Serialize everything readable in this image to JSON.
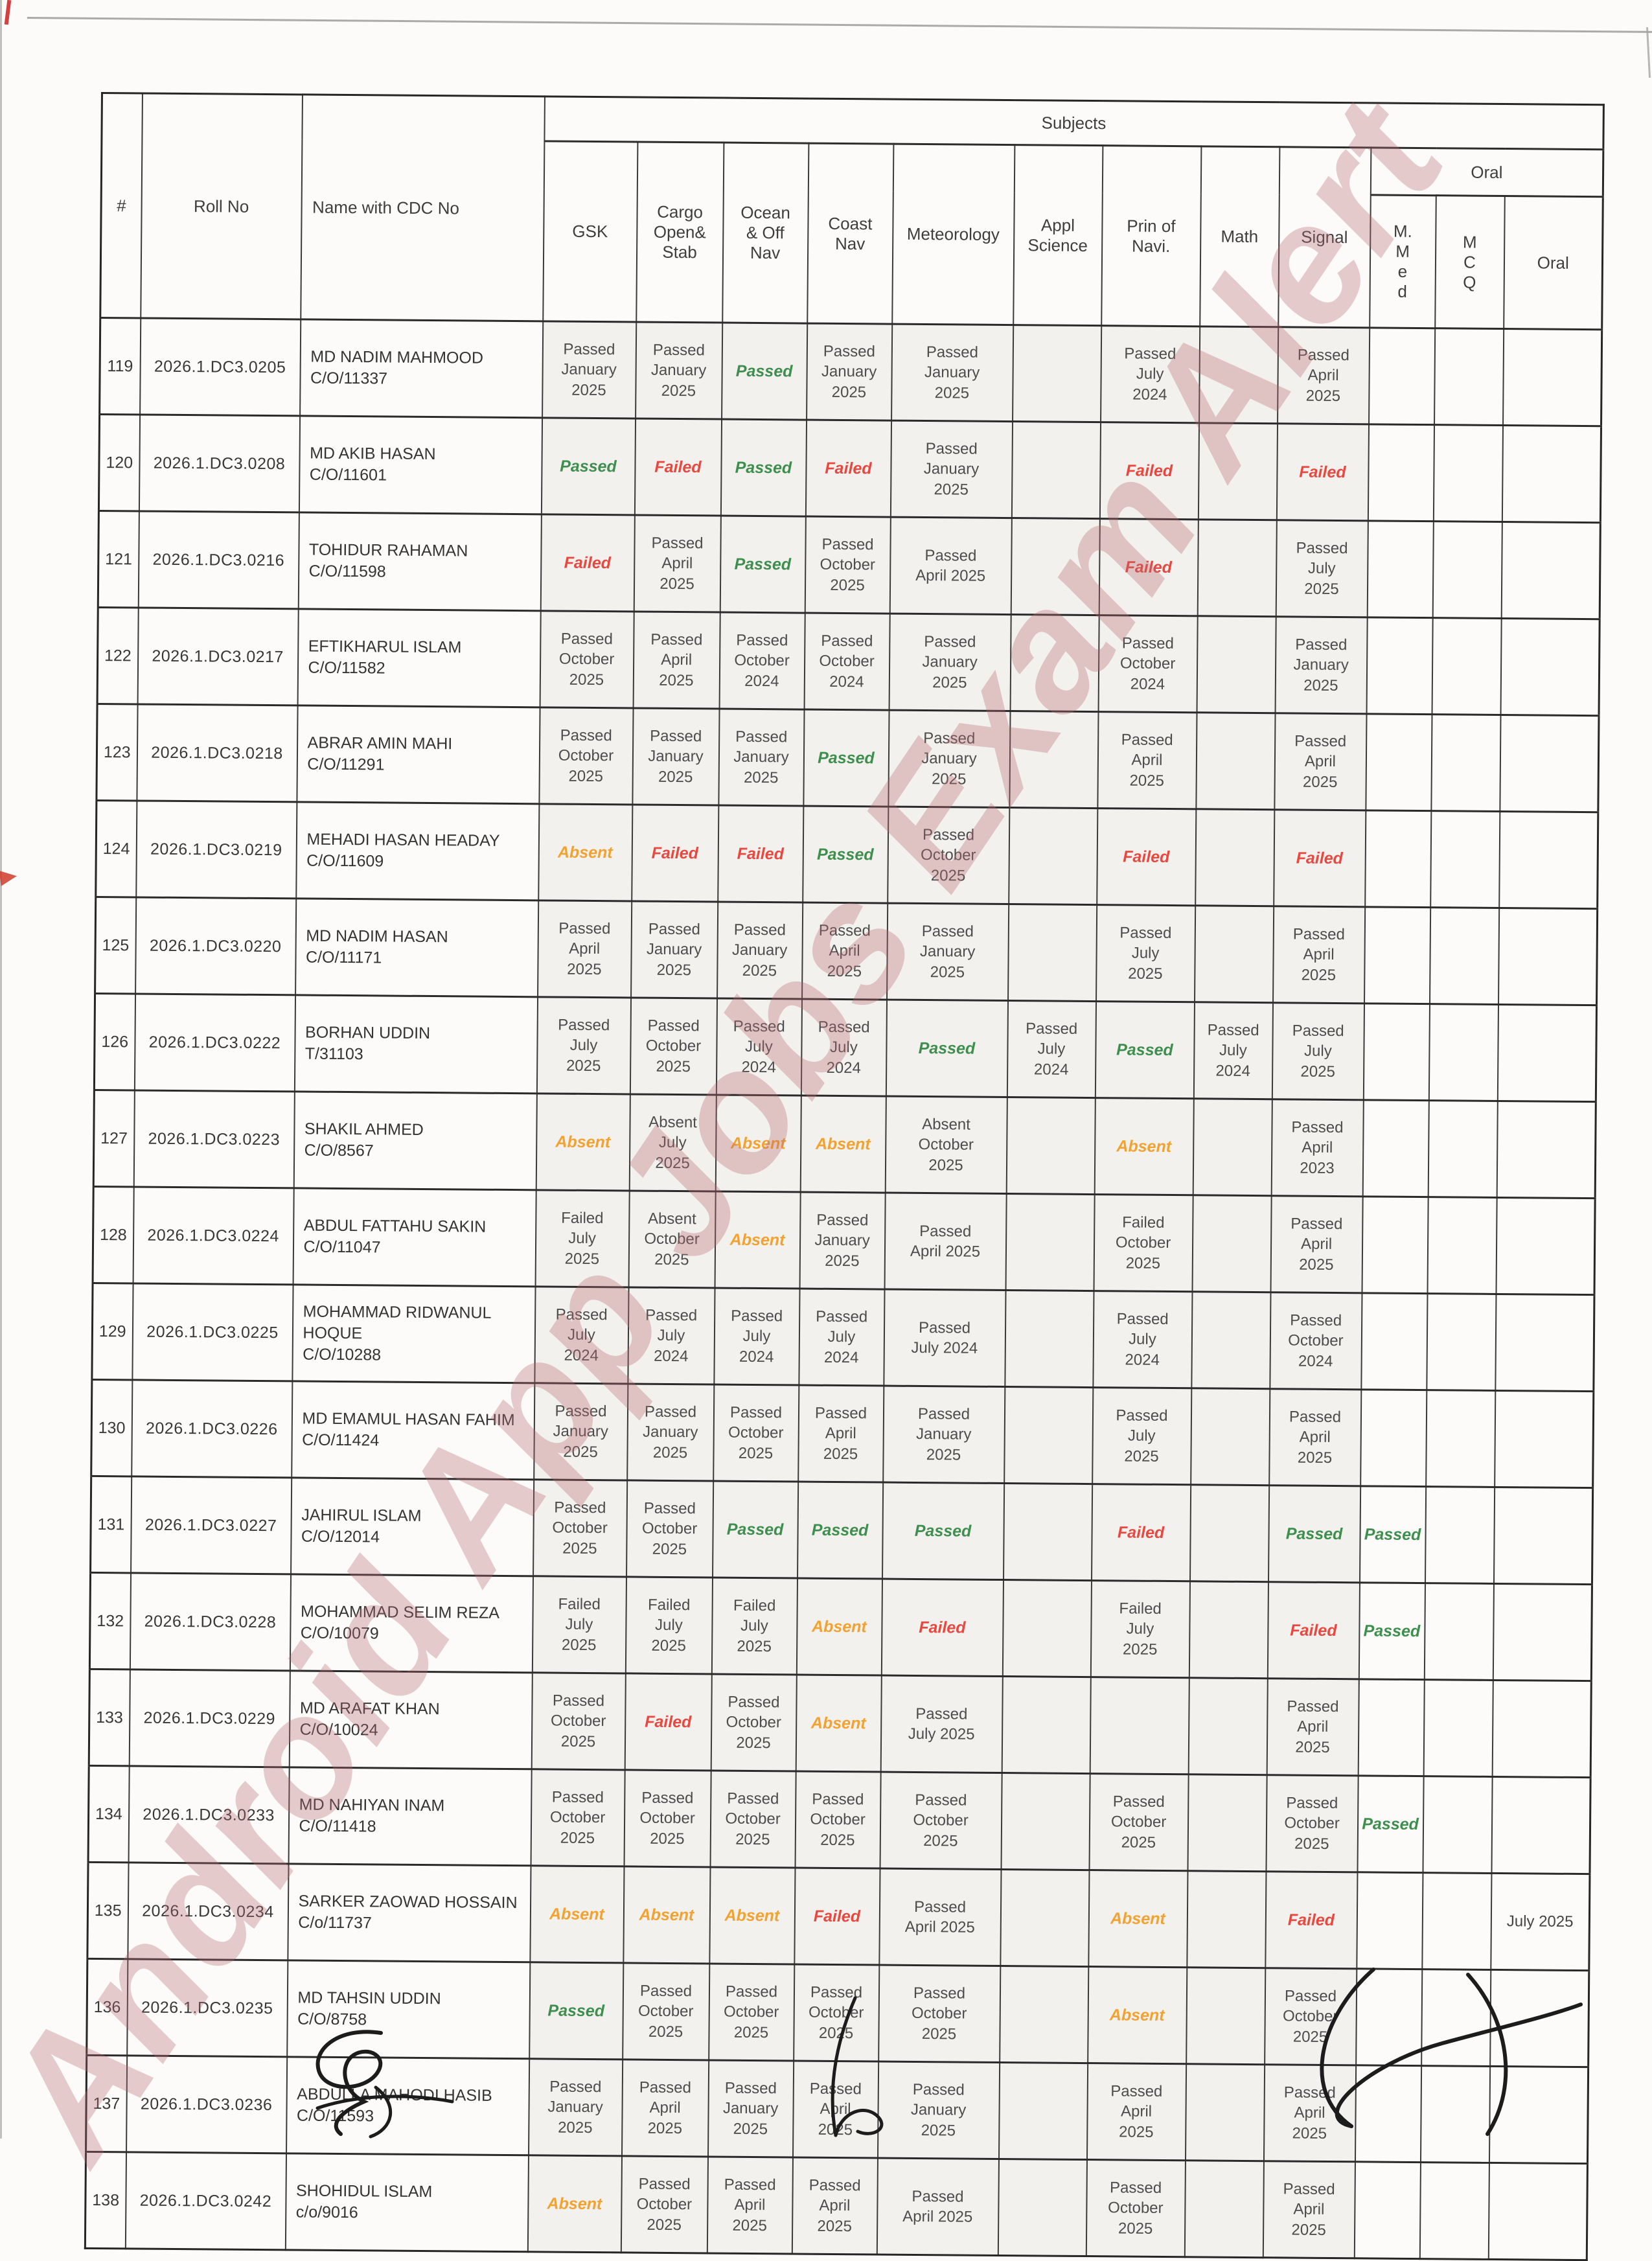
{
  "watermark": {
    "text": "Android App Jobs Exam Alert"
  },
  "colors": {
    "passed": "#3e8e4e",
    "failed": "#e8483f",
    "absent": "#f2a230",
    "dated": "#4d4d4d"
  },
  "table": {
    "headers": {
      "num": "#",
      "roll": "Roll No",
      "name": "Name with CDC No",
      "subjects_group": "Subjects",
      "subject_cols": [
        "GSK",
        "Cargo\nOpen&\nStab",
        "Ocean\n& Off\nNav",
        "Coast\nNav",
        "Meteorology",
        "Appl\nScience",
        "Prin of\nNavi.",
        "Math",
        "Signal"
      ],
      "oral_group": "Oral",
      "oral_cols": [
        "M.\nM\ne\nd",
        "M\nC\nQ",
        "Oral"
      ]
    },
    "rows": [
      {
        "num": "119",
        "roll": "2026.1.DC3.0205",
        "name": "MD NADIM MAHMOOD",
        "cdc": "C/O/11337",
        "results": [
          {
            "t": "Passed\nJanuary\n2025",
            "s": "dated"
          },
          {
            "t": "Passed\nJanuary\n2025",
            "s": "dated"
          },
          {
            "t": "Passed",
            "s": "green"
          },
          {
            "t": "Passed\nJanuary\n2025",
            "s": "dated"
          },
          {
            "t": "Passed\nJanuary\n2025",
            "s": "dated"
          },
          null,
          {
            "t": "Passed\nJuly\n2024",
            "s": "dated"
          },
          null,
          {
            "t": "Passed\nApril\n2025",
            "s": "dated"
          },
          null,
          null,
          null
        ]
      },
      {
        "num": "120",
        "roll": "2026.1.DC3.0208",
        "name": "MD AKIB HASAN",
        "cdc": "C/O/11601",
        "results": [
          {
            "t": "Passed",
            "s": "green"
          },
          {
            "t": "Failed",
            "s": "red"
          },
          {
            "t": "Passed",
            "s": "green"
          },
          {
            "t": "Failed",
            "s": "red"
          },
          {
            "t": "Passed\nJanuary\n2025",
            "s": "dated"
          },
          null,
          {
            "t": "Failed",
            "s": "red"
          },
          null,
          {
            "t": "Failed",
            "s": "red"
          },
          null,
          null,
          null
        ]
      },
      {
        "num": "121",
        "roll": "2026.1.DC3.0216",
        "name": "TOHIDUR RAHAMAN",
        "cdc": "C/O/11598",
        "results": [
          {
            "t": "Failed",
            "s": "red"
          },
          {
            "t": "Passed\nApril\n2025",
            "s": "dated"
          },
          {
            "t": "Passed",
            "s": "green"
          },
          {
            "t": "Passed\nOctober\n2025",
            "s": "dated"
          },
          {
            "t": "Passed\nApril 2025",
            "s": "dated"
          },
          null,
          {
            "t": "Failed",
            "s": "red"
          },
          null,
          {
            "t": "Passed\nJuly\n2025",
            "s": "dated"
          },
          null,
          null,
          null
        ]
      },
      {
        "num": "122",
        "roll": "2026.1.DC3.0217",
        "name": "EFTIKHARUL ISLAM",
        "cdc": "C/O/11582",
        "results": [
          {
            "t": "Passed\nOctober\n2025",
            "s": "dated"
          },
          {
            "t": "Passed\nApril\n2025",
            "s": "dated"
          },
          {
            "t": "Passed\nOctober\n2024",
            "s": "dated"
          },
          {
            "t": "Passed\nOctober\n2024",
            "s": "dated"
          },
          {
            "t": "Passed\nJanuary\n2025",
            "s": "dated"
          },
          null,
          {
            "t": "Passed\nOctober\n2024",
            "s": "dated"
          },
          null,
          {
            "t": "Passed\nJanuary\n2025",
            "s": "dated"
          },
          null,
          null,
          null
        ]
      },
      {
        "num": "123",
        "roll": "2026.1.DC3.0218",
        "name": "ABRAR AMIN MAHI",
        "cdc": "C/O/11291",
        "results": [
          {
            "t": "Passed\nOctober\n2025",
            "s": "dated"
          },
          {
            "t": "Passed\nJanuary\n2025",
            "s": "dated"
          },
          {
            "t": "Passed\nJanuary\n2025",
            "s": "dated"
          },
          {
            "t": "Passed",
            "s": "green"
          },
          {
            "t": "Passed\nJanuary\n2025",
            "s": "dated"
          },
          null,
          {
            "t": "Passed\nApril\n2025",
            "s": "dated"
          },
          null,
          {
            "t": "Passed\nApril\n2025",
            "s": "dated"
          },
          null,
          null,
          null
        ]
      },
      {
        "num": "124",
        "roll": "2026.1.DC3.0219",
        "name": "MEHADI HASAN HEADAY",
        "cdc": "C/O/11609",
        "results": [
          {
            "t": "Absent",
            "s": "orange"
          },
          {
            "t": "Failed",
            "s": "red"
          },
          {
            "t": "Failed",
            "s": "red"
          },
          {
            "t": "Passed",
            "s": "green"
          },
          {
            "t": "Passed\nOctober\n2025",
            "s": "dated"
          },
          null,
          {
            "t": "Failed",
            "s": "red"
          },
          null,
          {
            "t": "Failed",
            "s": "red"
          },
          null,
          null,
          null
        ]
      },
      {
        "num": "125",
        "roll": "2026.1.DC3.0220",
        "name": "MD NADIM HASAN",
        "cdc": "C/O/11171",
        "results": [
          {
            "t": "Passed\nApril\n2025",
            "s": "dated"
          },
          {
            "t": "Passed\nJanuary\n2025",
            "s": "dated"
          },
          {
            "t": "Passed\nJanuary\n2025",
            "s": "dated"
          },
          {
            "t": "Passed\nApril\n2025",
            "s": "dated"
          },
          {
            "t": "Passed\nJanuary\n2025",
            "s": "dated"
          },
          null,
          {
            "t": "Passed\nJuly\n2025",
            "s": "dated"
          },
          null,
          {
            "t": "Passed\nApril\n2025",
            "s": "dated"
          },
          null,
          null,
          null
        ]
      },
      {
        "num": "126",
        "roll": "2026.1.DC3.0222",
        "name": "BORHAN UDDIN",
        "cdc": "T/31103",
        "results": [
          {
            "t": "Passed\nJuly\n2025",
            "s": "dated"
          },
          {
            "t": "Passed\nOctober\n2025",
            "s": "dated"
          },
          {
            "t": "Passed\nJuly\n2024",
            "s": "dated"
          },
          {
            "t": "Passed\nJuly\n2024",
            "s": "dated"
          },
          {
            "t": "Passed",
            "s": "green"
          },
          {
            "t": "Passed\nJuly\n2024",
            "s": "dated"
          },
          {
            "t": "Passed",
            "s": "green"
          },
          {
            "t": "Passed\nJuly\n2024",
            "s": "dated"
          },
          {
            "t": "Passed\nJuly\n2025",
            "s": "dated"
          },
          null,
          null,
          null
        ]
      },
      {
        "num": "127",
        "roll": "2026.1.DC3.0223",
        "name": "SHAKIL AHMED",
        "cdc": "C/O/8567",
        "results": [
          {
            "t": "Absent",
            "s": "orange"
          },
          {
            "t": "Absent\nJuly\n2025",
            "s": "dated"
          },
          {
            "t": "Absent",
            "s": "orange"
          },
          {
            "t": "Absent",
            "s": "orange"
          },
          {
            "t": "Absent\nOctober\n2025",
            "s": "dated"
          },
          null,
          {
            "t": "Absent",
            "s": "orange"
          },
          null,
          {
            "t": "Passed\nApril\n2023",
            "s": "dated"
          },
          null,
          null,
          null
        ]
      },
      {
        "num": "128",
        "roll": "2026.1.DC3.0224",
        "name": "ABDUL FATTAHU SAKIN",
        "cdc": "C/O/11047",
        "results": [
          {
            "t": "Failed\nJuly\n2025",
            "s": "dated"
          },
          {
            "t": "Absent\nOctober\n2025",
            "s": "dated"
          },
          {
            "t": "Absent",
            "s": "orange"
          },
          {
            "t": "Passed\nJanuary\n2025",
            "s": "dated"
          },
          {
            "t": "Passed\nApril 2025",
            "s": "dated"
          },
          null,
          {
            "t": "Failed\nOctober\n2025",
            "s": "dated"
          },
          null,
          {
            "t": "Passed\nApril\n2025",
            "s": "dated"
          },
          null,
          null,
          null
        ]
      },
      {
        "num": "129",
        "roll": "2026.1.DC3.0225",
        "name": "MOHAMMAD RIDWANUL HOQUE",
        "cdc": "C/O/10288",
        "results": [
          {
            "t": "Passed\nJuly\n2024",
            "s": "dated"
          },
          {
            "t": "Passed\nJuly\n2024",
            "s": "dated"
          },
          {
            "t": "Passed\nJuly\n2024",
            "s": "dated"
          },
          {
            "t": "Passed\nJuly\n2024",
            "s": "dated"
          },
          {
            "t": "Passed\nJuly 2024",
            "s": "dated"
          },
          null,
          {
            "t": "Passed\nJuly\n2024",
            "s": "dated"
          },
          null,
          {
            "t": "Passed\nOctober\n2024",
            "s": "dated"
          },
          null,
          null,
          null
        ]
      },
      {
        "num": "130",
        "roll": "2026.1.DC3.0226",
        "name": "MD EMAMUL HASAN FAHIM",
        "cdc": "C/O/11424",
        "results": [
          {
            "t": "Passed\nJanuary\n2025",
            "s": "dated"
          },
          {
            "t": "Passed\nJanuary\n2025",
            "s": "dated"
          },
          {
            "t": "Passed\nOctober\n2025",
            "s": "dated"
          },
          {
            "t": "Passed\nApril\n2025",
            "s": "dated"
          },
          {
            "t": "Passed\nJanuary\n2025",
            "s": "dated"
          },
          null,
          {
            "t": "Passed\nJuly\n2025",
            "s": "dated"
          },
          null,
          {
            "t": "Passed\nApril\n2025",
            "s": "dated"
          },
          null,
          null,
          null
        ]
      },
      {
        "num": "131",
        "roll": "2026.1.DC3.0227",
        "name": "JAHIRUL ISLAM",
        "cdc": "C/O/12014",
        "results": [
          {
            "t": "Passed\nOctober\n2025",
            "s": "dated"
          },
          {
            "t": "Passed\nOctober\n2025",
            "s": "dated"
          },
          {
            "t": "Passed",
            "s": "green"
          },
          {
            "t": "Passed",
            "s": "green"
          },
          {
            "t": "Passed",
            "s": "green"
          },
          null,
          {
            "t": "Failed",
            "s": "red"
          },
          null,
          {
            "t": "Passed",
            "s": "green"
          },
          {
            "t": "Passed",
            "s": "green"
          },
          null,
          null
        ]
      },
      {
        "num": "132",
        "roll": "2026.1.DC3.0228",
        "name": "MOHAMMAD SELIM REZA",
        "cdc": "C/O/10079",
        "results": [
          {
            "t": "Failed\nJuly\n2025",
            "s": "dated"
          },
          {
            "t": "Failed\nJuly\n2025",
            "s": "dated"
          },
          {
            "t": "Failed\nJuly\n2025",
            "s": "dated"
          },
          {
            "t": "Absent",
            "s": "orange"
          },
          {
            "t": "Failed",
            "s": "red"
          },
          null,
          {
            "t": "Failed\nJuly\n2025",
            "s": "dated"
          },
          null,
          {
            "t": "Failed",
            "s": "red"
          },
          {
            "t": "Passed",
            "s": "green"
          },
          null,
          null
        ]
      },
      {
        "num": "133",
        "roll": "2026.1.DC3.0229",
        "name": "MD ARAFAT KHAN",
        "cdc": "C/O/10024",
        "results": [
          {
            "t": "Passed\nOctober\n2025",
            "s": "dated"
          },
          {
            "t": "Failed",
            "s": "red"
          },
          {
            "t": "Passed\nOctober\n2025",
            "s": "dated"
          },
          {
            "t": "Absent",
            "s": "orange"
          },
          {
            "t": "Passed\nJuly 2025",
            "s": "dated"
          },
          null,
          null,
          null,
          {
            "t": "Passed\nApril\n2025",
            "s": "dated"
          },
          null,
          null,
          null
        ]
      },
      {
        "num": "134",
        "roll": "2026.1.DC3.0233",
        "name": "MD NAHIYAN INAM",
        "cdc": "C/O/11418",
        "results": [
          {
            "t": "Passed\nOctober\n2025",
            "s": "dated"
          },
          {
            "t": "Passed\nOctober\n2025",
            "s": "dated"
          },
          {
            "t": "Passed\nOctober\n2025",
            "s": "dated"
          },
          {
            "t": "Passed\nOctober\n2025",
            "s": "dated"
          },
          {
            "t": "Passed\nOctober\n2025",
            "s": "dated"
          },
          null,
          {
            "t": "Passed\nOctober\n2025",
            "s": "dated"
          },
          null,
          {
            "t": "Passed\nOctober\n2025",
            "s": "dated"
          },
          {
            "t": "Passed",
            "s": "green"
          },
          null,
          null
        ]
      },
      {
        "num": "135",
        "roll": "2026.1.DC3.0234",
        "name": "SARKER ZAOWAD HOSSAIN",
        "cdc": "C/o/11737",
        "results": [
          {
            "t": "Absent",
            "s": "orange"
          },
          {
            "t": "Absent",
            "s": "orange"
          },
          {
            "t": "Absent",
            "s": "orange"
          },
          {
            "t": "Failed",
            "s": "red"
          },
          {
            "t": "Passed\nApril 2025",
            "s": "dated"
          },
          null,
          {
            "t": "Absent",
            "s": "orange"
          },
          null,
          {
            "t": "Failed",
            "s": "red"
          },
          null,
          null,
          {
            "t": "July 2025",
            "s": "plain"
          }
        ]
      },
      {
        "num": "136",
        "roll": "2026.1.DC3.0235",
        "name": "MD TAHSIN UDDIN",
        "cdc": "C/O/8758",
        "results": [
          {
            "t": "Passed",
            "s": "green"
          },
          {
            "t": "Passed\nOctober\n2025",
            "s": "dated"
          },
          {
            "t": "Passed\nOctober\n2025",
            "s": "dated"
          },
          {
            "t": "Passed\nOctober\n2025",
            "s": "dated"
          },
          {
            "t": "Passed\nOctober\n2025",
            "s": "dated"
          },
          null,
          {
            "t": "Absent",
            "s": "orange"
          },
          null,
          {
            "t": "Passed\nOctober\n2025",
            "s": "dated"
          },
          null,
          null,
          null
        ]
      },
      {
        "num": "137",
        "roll": "2026.1.DC3.0236",
        "name": "ABDULLA MAHODI HASIB",
        "cdc": "C/O/11593",
        "results": [
          {
            "t": "Passed\nJanuary\n2025",
            "s": "dated"
          },
          {
            "t": "Passed\nApril\n2025",
            "s": "dated"
          },
          {
            "t": "Passed\nJanuary\n2025",
            "s": "dated"
          },
          {
            "t": "Passed\nApril\n2025",
            "s": "dated"
          },
          {
            "t": "Passed\nJanuary\n2025",
            "s": "dated"
          },
          null,
          {
            "t": "Passed\nApril\n2025",
            "s": "dated"
          },
          null,
          {
            "t": "Passed\nApril\n2025",
            "s": "dated"
          },
          null,
          null,
          null
        ]
      },
      {
        "num": "138",
        "roll": "2026.1.DC3.0242",
        "name": "SHOHIDUL ISLAM",
        "cdc": "c/o/9016",
        "results": [
          {
            "t": "Absent",
            "s": "orange"
          },
          {
            "t": "Passed\nOctober\n2025",
            "s": "dated"
          },
          {
            "t": "Passed\nApril\n2025",
            "s": "dated"
          },
          {
            "t": "Passed\nApril\n2025",
            "s": "dated"
          },
          {
            "t": "Passed\nApril 2025",
            "s": "dated"
          },
          null,
          {
            "t": "Passed\nOctober\n2025",
            "s": "dated"
          },
          null,
          {
            "t": "Passed\nApril\n2025",
            "s": "dated"
          },
          null,
          null,
          null
        ]
      }
    ]
  }
}
